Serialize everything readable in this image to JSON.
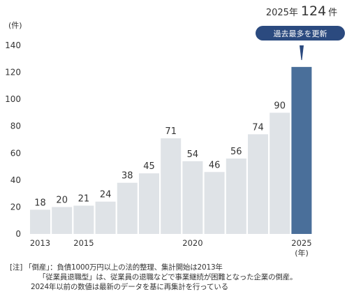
{
  "chart_data": {
    "type": "bar",
    "categories": [
      "2013",
      "2014",
      "2015",
      "2016",
      "2017",
      "2018",
      "2019",
      "2020",
      "2021",
      "2022",
      "2023",
      "2024",
      "2025"
    ],
    "values": [
      18,
      20,
      21,
      24,
      38,
      45,
      71,
      54,
      46,
      56,
      74,
      90,
      124
    ],
    "x_tick_labels": [
      "2013",
      "",
      "2015",
      "",
      "",
      "",
      "",
      "2020",
      "",
      "",
      "",
      "",
      "2025"
    ],
    "x_unit": "(年)",
    "y_unit": "(件)",
    "ylim": [
      0,
      140
    ],
    "yticks": [
      0,
      20,
      40,
      60,
      80,
      100,
      120,
      140
    ],
    "grid": false,
    "colors": {
      "normal": "#dfe3e7",
      "highlight": "#4a6f9a",
      "badge": "#2b4a7f"
    },
    "callout": {
      "year": "2025年",
      "value": "124",
      "unit": "件",
      "badge": "過去最多を更新"
    }
  },
  "notes": {
    "line1": "[注] 「倒産」：負債1000万円以上の法的整理、集計開始は2013年",
    "line2": "「従業員退職型」は、従業員の退職などで事業継続が困難となった企業の倒産。",
    "line3": "2024年以前の数値は最新のデータを基に再集計を行っている"
  }
}
